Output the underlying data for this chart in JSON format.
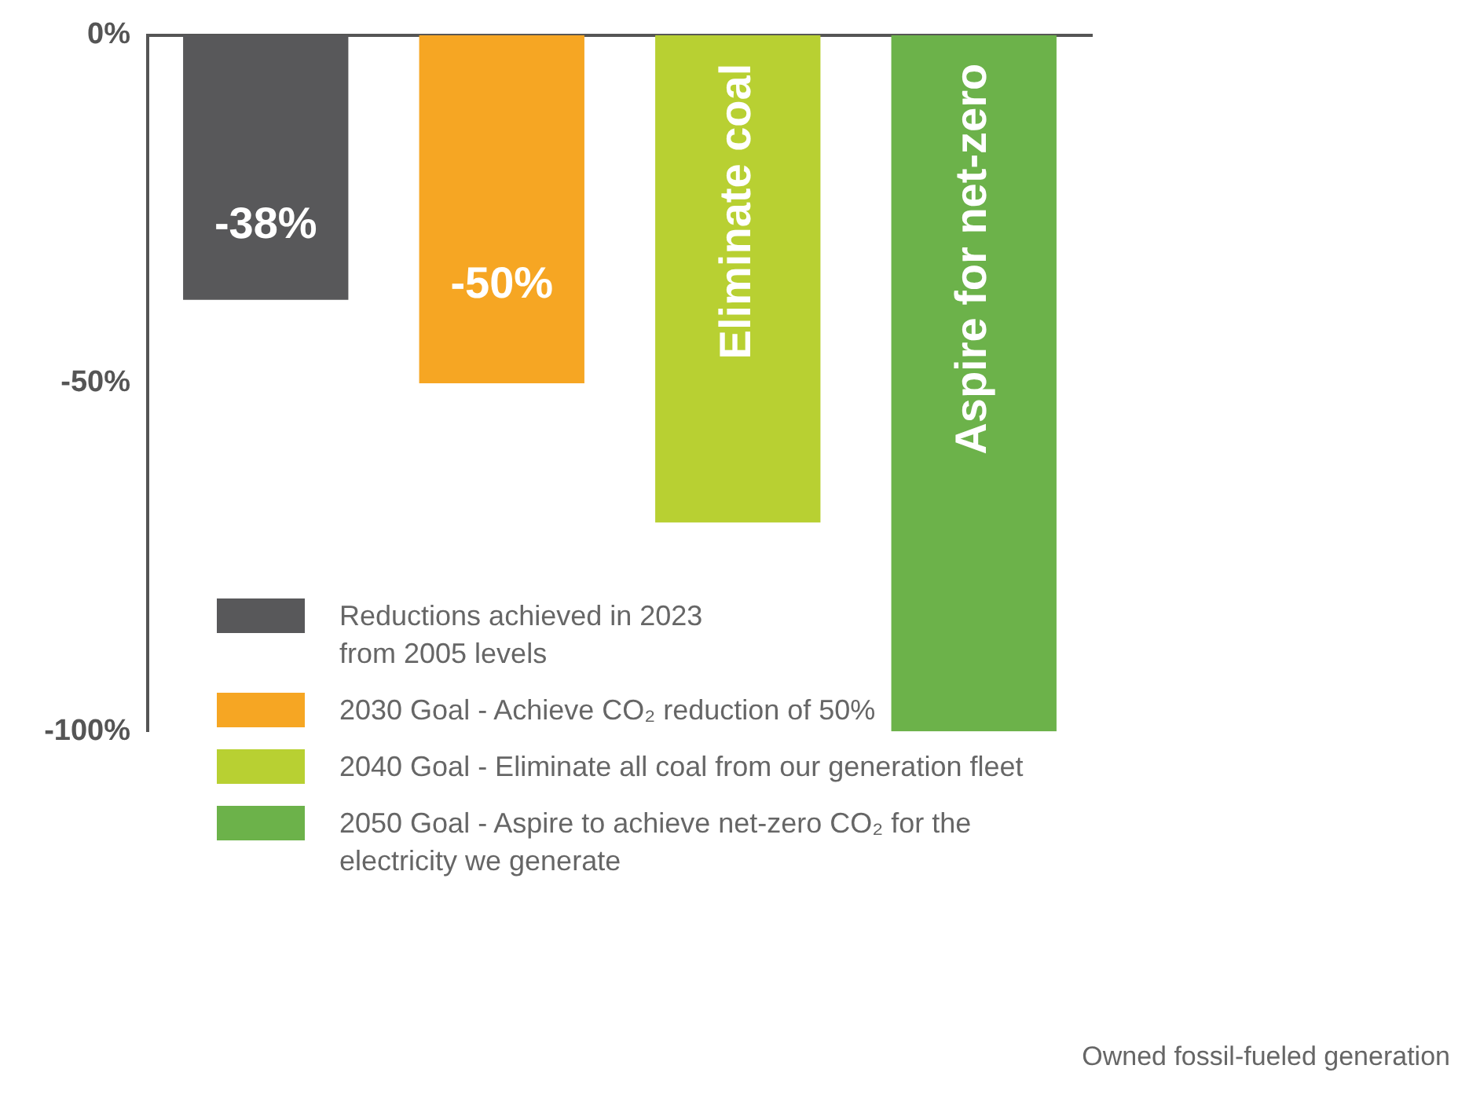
{
  "chart_data": {
    "type": "bar",
    "categories": [
      null,
      null,
      null,
      null
    ],
    "series": [
      {
        "name": "Reductions achieved in 2023 from 2005 levels",
        "color": "#58585a",
        "values": [
          -38,
          null,
          null,
          null
        ],
        "value_labels": [
          "-38%",
          null,
          null,
          null
        ]
      },
      {
        "name": "2030 Goal - Achieve CO₂ reduction of 50%",
        "color": "#f6a623",
        "values": [
          null,
          -50,
          null,
          null
        ],
        "value_labels": [
          null,
          "-50%",
          null,
          null
        ]
      },
      {
        "name": "2040 Goal - Eliminate all coal from our generation fleet",
        "color": "#b8d032",
        "values": [
          null,
          null,
          -70,
          null
        ],
        "value_labels": [
          null,
          null,
          "Eliminate coal",
          null
        ]
      },
      {
        "name": "2050 Goal - Aspire to achieve net-zero CO₂ for the electricity we generate",
        "color": "#6cb24a",
        "values": [
          null,
          null,
          null,
          -100
        ],
        "value_labels": [
          null,
          null,
          null,
          "Aspire for net-zero"
        ]
      }
    ],
    "ylim": [
      -100,
      0
    ],
    "yticks": [
      {
        "value": 0,
        "label": "0%"
      },
      {
        "value": -50,
        "label": "-50%"
      },
      {
        "value": -100,
        "label": "-100%"
      }
    ],
    "grid": false,
    "legend": "bottom left",
    "tick_labels": "y",
    "annotations": [
      "Owned fossil-fueled generation"
    ]
  }
}
